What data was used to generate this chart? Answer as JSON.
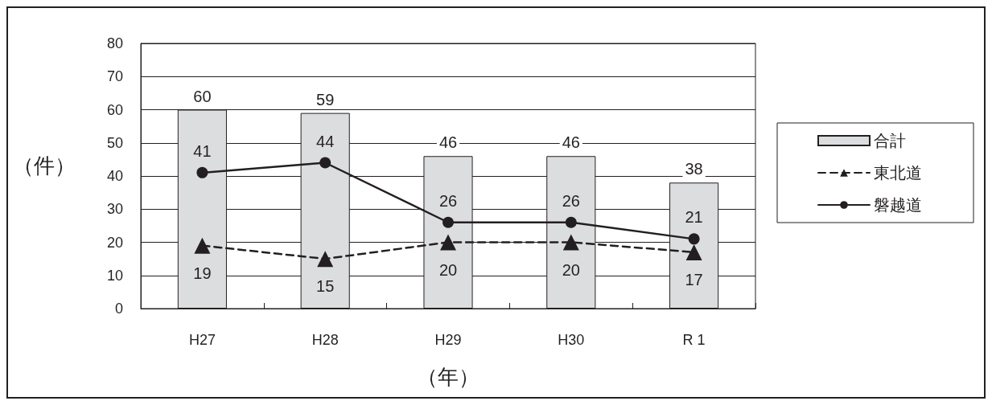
{
  "chart_data": {
    "type": "bar",
    "categories": [
      "H27",
      "H28",
      "H29",
      "H30",
      "R 1"
    ],
    "xlabel": "（年）",
    "ylabel": "（件）",
    "ylim": [
      0,
      80
    ],
    "yticks": [
      0,
      10,
      20,
      30,
      40,
      50,
      60,
      70,
      80
    ],
    "grid": "y",
    "legend": "right",
    "data_labels": true,
    "series": [
      {
        "name": "合計",
        "color": "#dcdddf",
        "values": [
          60,
          59,
          46,
          46,
          38
        ]
      },
      {
        "name": "東北道",
        "type": "line",
        "color": "#231f20",
        "marker": "triangle",
        "line_style": "dashed",
        "values": [
          19,
          15,
          20,
          20,
          17
        ]
      },
      {
        "name": "磐越道",
        "type": "line",
        "color": "#231f20",
        "marker": "circle",
        "line_style": "solid",
        "values": [
          41,
          44,
          26,
          26,
          21
        ]
      }
    ]
  }
}
